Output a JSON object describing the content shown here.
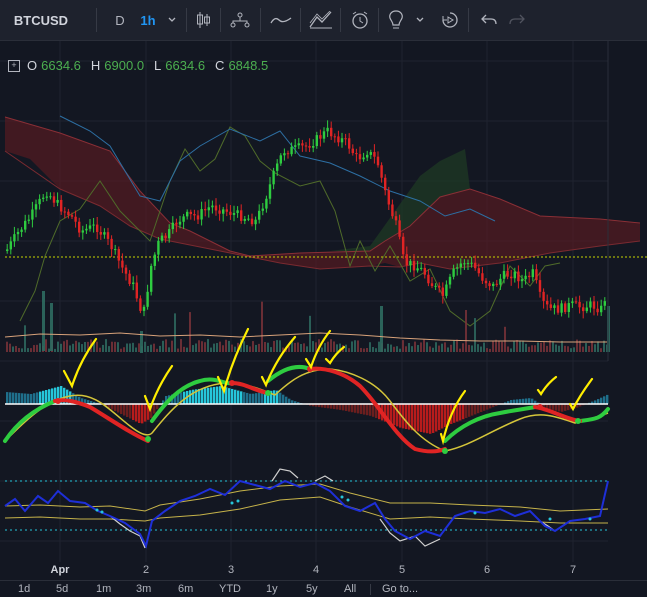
{
  "toolbar": {
    "symbol": "BTCUSD",
    "interval_d": "D",
    "interval_h": "1h",
    "icons": [
      "chevron-down-icon",
      "candles-icon",
      "indicators-icon",
      "line-tool-icon",
      "pattern-icon",
      "alert-icon",
      "idea-icon",
      "chevron-down-icon",
      "replay-icon",
      "undo-icon",
      "redo-icon"
    ]
  },
  "ohlc": {
    "o_label": "O",
    "o_value": "6634.6",
    "h_label": "H",
    "h_value": "6900.0",
    "l_label": "L",
    "l_value": "6634.6",
    "c_label": "C",
    "c_value": "6848.5"
  },
  "xaxis": {
    "labels": [
      "Apr",
      "2",
      "3",
      "4",
      "5",
      "6",
      "7"
    ]
  },
  "ranges": [
    "1d",
    "5d",
    "1m",
    "3m",
    "6m",
    "YTD",
    "1y",
    "5y",
    "All",
    "Go to..."
  ],
  "colors": {
    "bg": "#131722",
    "up": "#26a69a",
    "up_bright": "#2ecc40",
    "down": "#ef5350",
    "kumo_red": "#5a1a22",
    "kumo_green": "#1f3a24",
    "signal_yellow": "#ffeb3b",
    "osc_blue": "#1e2fd8"
  }
}
